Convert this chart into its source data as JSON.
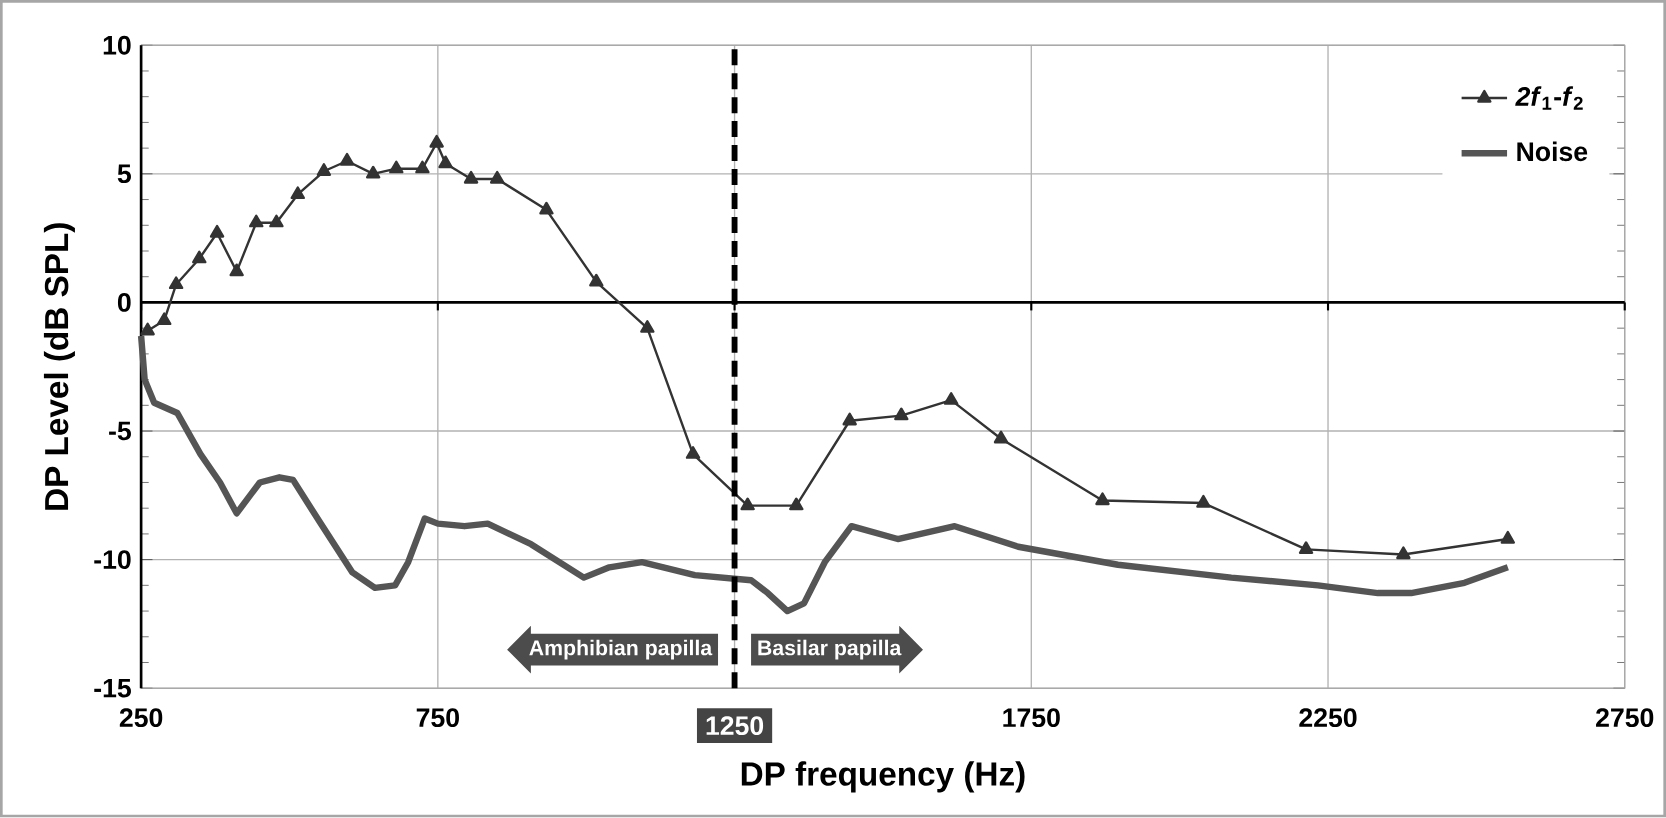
{
  "chart_data": {
    "type": "line",
    "xlabel": "DP frequency  (Hz)",
    "ylabel": "DP Level  (dB SPL)",
    "xlim": [
      250,
      2750
    ],
    "xticks": [
      250,
      750,
      1250,
      1750,
      2250,
      2750
    ],
    "ylim": [
      -15,
      10
    ],
    "yticks": [
      -15,
      -10,
      -5,
      0,
      5,
      10
    ],
    "grid": true,
    "legend": "top right",
    "series": [
      {
        "name": "*2f*$_{1}$-*f*$_{2}$",
        "color": "#333333",
        "marker": "triangle",
        "x": [
          261,
          289,
          309,
          348,
          378,
          411,
          444,
          478,
          514,
          558,
          597,
          641,
          680,
          724,
          748,
          763,
          806,
          850,
          933,
          1017,
          1103,
          1180,
          1272,
          1354,
          1444,
          1531,
          1615,
          1699,
          1870,
          2040,
          2213,
          2377,
          2553
        ],
        "values": [
          -1.1,
          -0.7,
          0.7,
          1.7,
          2.7,
          1.2,
          3.1,
          3.1,
          4.2,
          5.1,
          5.5,
          5.0,
          5.2,
          5.2,
          6.2,
          5.4,
          4.8,
          4.8,
          3.6,
          0.8,
          -1.0,
          -5.9,
          -7.9,
          -7.9,
          -4.6,
          -4.4,
          -3.8,
          -5.3,
          -7.7,
          -7.8,
          -9.6,
          -9.8,
          -9.2
        ]
      },
      {
        "name": "Noise",
        "color": "#555555",
        "marker": "none",
        "x": [
          250,
          256,
          272,
          311,
          350,
          383,
          411,
          450,
          483,
          506,
          550,
          606,
          644,
          678,
          700,
          728,
          750,
          795,
          834,
          907,
          996,
          1039,
          1094,
          1183,
          1278,
          1306,
          1339,
          1367,
          1402,
          1447,
          1525,
          1621,
          1728,
          1896,
          2087,
          2233,
          2334,
          2390,
          2480,
          2553
        ],
        "values": [
          -1.3,
          -3.0,
          -3.9,
          -4.3,
          -5.9,
          -7.0,
          -8.2,
          -7.0,
          -6.8,
          -6.9,
          -8.5,
          -10.5,
          -11.1,
          -11.0,
          -10.1,
          -8.4,
          -8.6,
          -8.7,
          -8.6,
          -9.4,
          -10.7,
          -10.3,
          -10.1,
          -10.6,
          -10.8,
          -11.3,
          -12.0,
          -11.7,
          -10.1,
          -8.7,
          -9.2,
          -8.7,
          -9.5,
          -10.2,
          -10.7,
          -11.0,
          -11.3,
          -11.3,
          -10.9,
          -10.3
        ]
      }
    ],
    "ref_lines": [
      {
        "axis": "x",
        "value": 1250,
        "color": "#000000",
        "line_style": "dashed"
      }
    ],
    "annotations": [
      "Amphibian papilla",
      "Basilar papilla"
    ]
  }
}
